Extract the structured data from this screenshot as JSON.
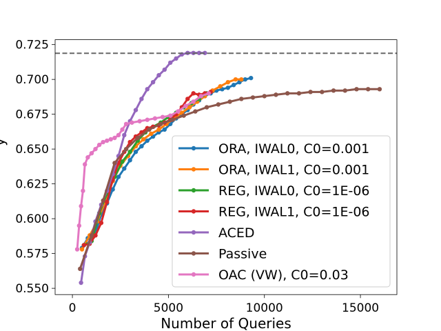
{
  "chart_data": {
    "type": "line",
    "title": "",
    "xlabel": "Number of Queries",
    "ylabel": "y",
    "xlim": [
      -900,
      16900
    ],
    "ylim": [
      0.5455,
      0.7285
    ],
    "xticks": [
      {
        "v": 0,
        "label": "0"
      },
      {
        "v": 5000,
        "label": "5000"
      },
      {
        "v": 10000,
        "label": "10000"
      },
      {
        "v": 15000,
        "label": "15000"
      }
    ],
    "yticks": [
      {
        "v": 0.55,
        "label": "0.550"
      },
      {
        "v": 0.575,
        "label": "0.575"
      },
      {
        "v": 0.6,
        "label": "0.600"
      },
      {
        "v": 0.625,
        "label": "0.625"
      },
      {
        "v": 0.65,
        "label": "0.650"
      },
      {
        "v": 0.675,
        "label": "0.675"
      },
      {
        "v": 0.7,
        "label": "0.700"
      },
      {
        "v": 0.725,
        "label": "0.725"
      }
    ],
    "reference_line": {
      "y": 0.7188,
      "color": "#666666",
      "style": "dashed"
    },
    "legend_position": "lower-right",
    "series": [
      {
        "name": "ORA, IWAL0, C0=0.001",
        "color": "#1f77b4",
        "x": [
          500,
          800,
          1200,
          1500,
          1800,
          2100,
          2400,
          2700,
          3000,
          3300,
          3600,
          3900,
          4200,
          4500,
          4800,
          5100,
          5400,
          5700,
          6000,
          6300,
          6600,
          6900,
          7200,
          7500,
          7800,
          8100,
          8400,
          8700,
          9000,
          9300
        ],
        "y": [
          0.579,
          0.586,
          0.59,
          0.603,
          0.611,
          0.621,
          0.63,
          0.636,
          0.642,
          0.648,
          0.652,
          0.656,
          0.659,
          0.662,
          0.664,
          0.668,
          0.672,
          0.675,
          0.678,
          0.682,
          0.685,
          0.688,
          0.69,
          0.692,
          0.693,
          0.694,
          0.696,
          0.698,
          0.7,
          0.701
        ]
      },
      {
        "name": "ORA, IWAL1, C0=0.001",
        "color": "#ff7f0e",
        "x": [
          500,
          900,
          1300,
          1700,
          2100,
          2500,
          2900,
          3300,
          3700,
          4100,
          4500,
          4900,
          5300,
          5700,
          6100,
          6500,
          6900,
          7300,
          7700,
          8100,
          8500,
          8800
        ],
        "y": [
          0.578,
          0.588,
          0.598,
          0.612,
          0.627,
          0.638,
          0.645,
          0.652,
          0.657,
          0.661,
          0.664,
          0.668,
          0.672,
          0.676,
          0.68,
          0.684,
          0.688,
          0.692,
          0.695,
          0.698,
          0.7,
          0.7
        ]
      },
      {
        "name": "REG, IWAL0, C0=1E-06",
        "color": "#2ca02c",
        "x": [
          600,
          1000,
          1400,
          1800,
          2200,
          2600,
          3000,
          3400,
          3800,
          4200,
          4600,
          5000,
          5400,
          5800,
          6200,
          6600,
          7000
        ],
        "y": [
          0.581,
          0.584,
          0.604,
          0.618,
          0.63,
          0.641,
          0.648,
          0.656,
          0.662,
          0.666,
          0.669,
          0.673,
          0.676,
          0.68,
          0.683,
          0.686,
          0.69
        ]
      },
      {
        "name": "REG, IWAL1, C0=1E-06",
        "color": "#d62728",
        "x": [
          600,
          900,
          1200,
          1500,
          1800,
          2100,
          2400,
          2700,
          3000,
          3300,
          3600,
          3900,
          4200,
          4500,
          4800,
          5100,
          5400,
          5700,
          6000,
          6300,
          6600,
          6900,
          7200
        ],
        "y": [
          0.581,
          0.582,
          0.588,
          0.597,
          0.612,
          0.628,
          0.64,
          0.648,
          0.655,
          0.659,
          0.662,
          0.665,
          0.666,
          0.667,
          0.669,
          0.671,
          0.675,
          0.68,
          0.686,
          0.69,
          0.689,
          0.69,
          0.691
        ]
      },
      {
        "name": "ACED",
        "color": "#9467bd",
        "x": [
          450,
          650,
          900,
          1200,
          1500,
          1800,
          2100,
          2400,
          2700,
          3000,
          3300,
          3600,
          3900,
          4200,
          4500,
          4800,
          5100,
          5400,
          5700,
          6000,
          6300,
          6600,
          6900
        ],
        "y": [
          0.554,
          0.573,
          0.583,
          0.598,
          0.61,
          0.62,
          0.632,
          0.645,
          0.66,
          0.67,
          0.678,
          0.686,
          0.693,
          0.698,
          0.703,
          0.707,
          0.712,
          0.715,
          0.718,
          0.719,
          0.719,
          0.719,
          0.719
        ]
      },
      {
        "name": "Passive",
        "color": "#8c564b",
        "x": [
          400,
          1000,
          1600,
          2200,
          2800,
          3400,
          4000,
          4600,
          5200,
          5800,
          6400,
          7000,
          7600,
          8200,
          8800,
          9400,
          10000,
          10600,
          11200,
          11800,
          12400,
          13000,
          13600,
          14200,
          14800,
          15400,
          16000
        ],
        "y": [
          0.564,
          0.588,
          0.613,
          0.64,
          0.65,
          0.658,
          0.664,
          0.668,
          0.671,
          0.674,
          0.677,
          0.68,
          0.682,
          0.684,
          0.686,
          0.687,
          0.688,
          0.689,
          0.69,
          0.69,
          0.691,
          0.691,
          0.692,
          0.692,
          0.693,
          0.693,
          0.693
        ]
      },
      {
        "name": "OAC (VW), C0=0.03",
        "color": "#e377c2",
        "x": [
          250,
          350,
          450,
          550,
          650,
          800,
          1000,
          1200,
          1400,
          1600,
          1800,
          2000,
          2200,
          2400,
          2600,
          2800,
          3100,
          3500,
          3900,
          4300,
          4700,
          5100,
          5500,
          5900,
          6300,
          6700,
          7100
        ],
        "y": [
          0.578,
          0.595,
          0.609,
          0.62,
          0.639,
          0.644,
          0.647,
          0.65,
          0.653,
          0.655,
          0.656,
          0.657,
          0.658,
          0.66,
          0.664,
          0.668,
          0.669,
          0.67,
          0.671,
          0.672,
          0.673,
          0.674,
          0.677,
          0.681,
          0.684,
          0.688,
          0.69
        ]
      }
    ]
  }
}
